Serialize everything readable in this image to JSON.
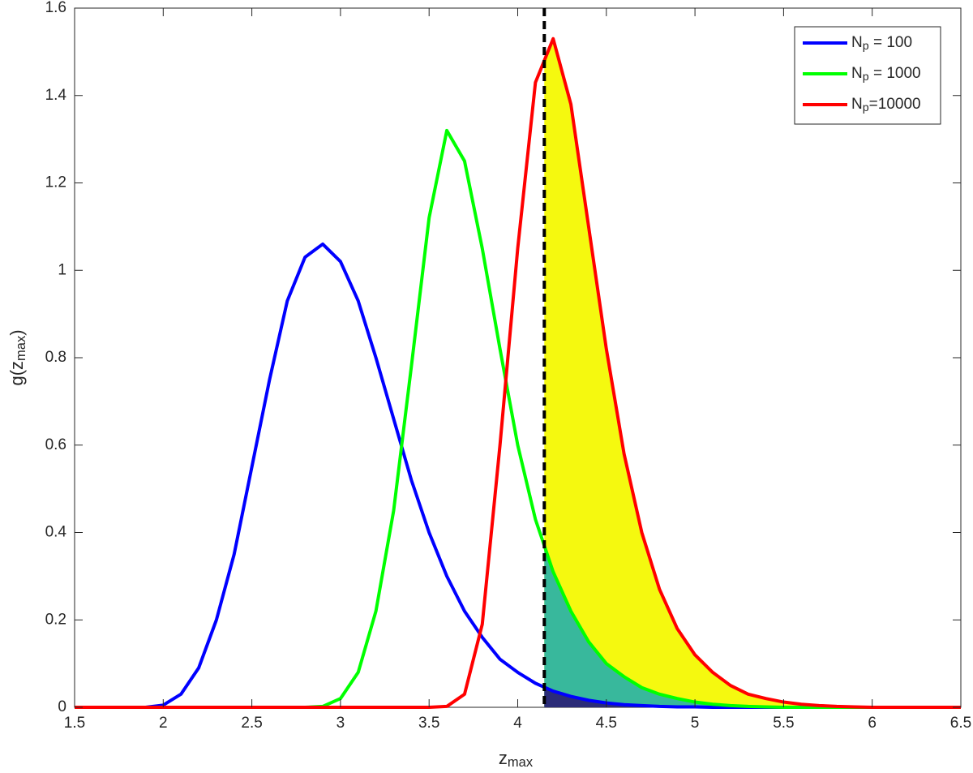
{
  "chart_data": {
    "type": "line",
    "xlabel": "zmax",
    "ylabel": "g(zmax)",
    "x": [
      1.5,
      1.6,
      1.7,
      1.8,
      1.9,
      2.0,
      2.1,
      2.2,
      2.3,
      2.4,
      2.5,
      2.6,
      2.7,
      2.8,
      2.9,
      3.0,
      3.1,
      3.2,
      3.3,
      3.4,
      3.5,
      3.6,
      3.7,
      3.8,
      3.9,
      4.0,
      4.1,
      4.2,
      4.3,
      4.4,
      4.5,
      4.6,
      4.7,
      4.8,
      4.9,
      5.0,
      5.1,
      5.2,
      5.3,
      5.4,
      5.5,
      5.6,
      5.7,
      5.8,
      5.9,
      6.0,
      6.1,
      6.2,
      6.3,
      6.4,
      6.5
    ],
    "series": [
      {
        "name": "Np = 100",
        "color": "#0000ff",
        "fill": "#2b2c78",
        "values": [
          0,
          0,
          0,
          0,
          0,
          0.005,
          0.03,
          0.09,
          0.2,
          0.35,
          0.55,
          0.75,
          0.93,
          1.03,
          1.06,
          1.02,
          0.93,
          0.8,
          0.66,
          0.52,
          0.4,
          0.3,
          0.22,
          0.16,
          0.11,
          0.08,
          0.055,
          0.037,
          0.025,
          0.016,
          0.01,
          0.006,
          0.004,
          0.002,
          0.001,
          0.001,
          0,
          0,
          0,
          0,
          0,
          0,
          0,
          0,
          0,
          0,
          0,
          0,
          0,
          0,
          0
        ]
      },
      {
        "name": "Np = 1000",
        "color": "#00ff00",
        "fill": "#38b89c",
        "values": [
          0,
          0,
          0,
          0,
          0,
          0,
          0,
          0,
          0,
          0,
          0,
          0,
          0,
          0,
          0.002,
          0.02,
          0.08,
          0.22,
          0.45,
          0.78,
          1.12,
          1.32,
          1.25,
          1.05,
          0.82,
          0.6,
          0.43,
          0.31,
          0.22,
          0.15,
          0.1,
          0.07,
          0.045,
          0.03,
          0.02,
          0.012,
          0.007,
          0.004,
          0.002,
          0.001,
          0,
          0,
          0,
          0,
          0,
          0,
          0,
          0,
          0,
          0,
          0
        ]
      },
      {
        "name": "Np=10000",
        "color": "#ff0000",
        "fill": "#f5f90f",
        "values": [
          0,
          0,
          0,
          0,
          0,
          0,
          0,
          0,
          0,
          0,
          0,
          0,
          0,
          0,
          0,
          0,
          0,
          0,
          0,
          0,
          0,
          0.002,
          0.03,
          0.19,
          0.6,
          1.05,
          1.43,
          1.53,
          1.38,
          1.1,
          0.82,
          0.58,
          0.4,
          0.27,
          0.18,
          0.12,
          0.08,
          0.05,
          0.03,
          0.02,
          0.012,
          0.007,
          0.004,
          0.002,
          0.001,
          0,
          0,
          0,
          0,
          0,
          0
        ]
      }
    ],
    "vline": 4.15,
    "xlim": [
      1.5,
      6.5
    ],
    "xticks": [
      1.5,
      2,
      2.5,
      3,
      3.5,
      4,
      4.5,
      5,
      5.5,
      6,
      6.5
    ],
    "ylim": [
      0,
      1.6
    ],
    "yticks": [
      0,
      0.2,
      0.4,
      0.6,
      0.8,
      1,
      1.2,
      1.4,
      1.6
    ],
    "grid": false,
    "legend": "top-right"
  }
}
